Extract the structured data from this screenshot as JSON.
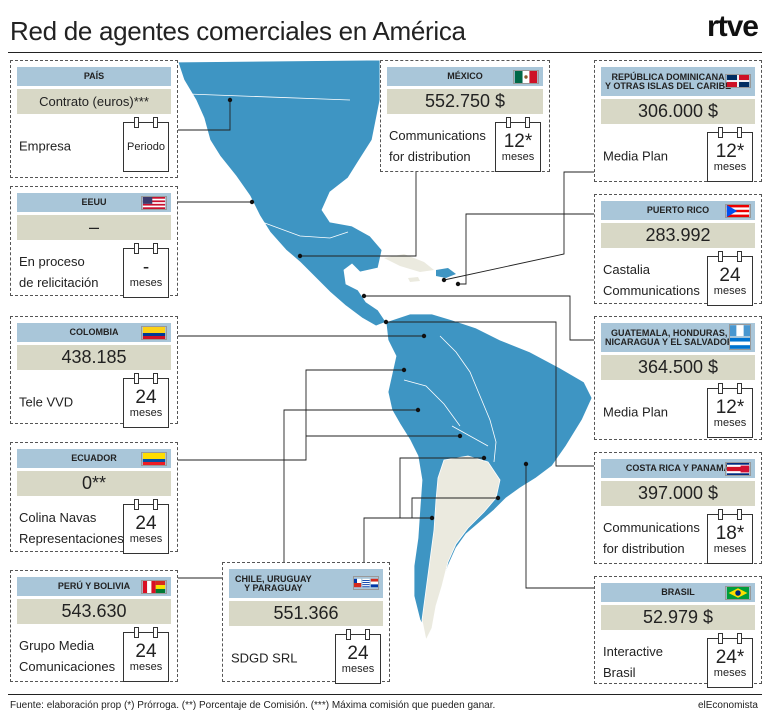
{
  "title": "Red de agentes comerciales en América",
  "logo": "rtve",
  "legend": {
    "header": "PAÍS",
    "amount": "Contrato (euros)***",
    "company": "Empresa",
    "period": "Periodo"
  },
  "cards": {
    "eeuu": {
      "country": "EEUU",
      "amount": "–",
      "company": "En proceso\nde relicitación",
      "num": "-",
      "unit": "meses",
      "flag": "usa-flag"
    },
    "colombia": {
      "country": "COLOMBIA",
      "amount": "438.185",
      "company": "Tele VVD",
      "num": "24",
      "unit": "meses",
      "flag": "colombia-flag"
    },
    "ecuador": {
      "country": "ECUADOR",
      "amount": "0**",
      "company": "Colina Navas\nRepresentaciones",
      "num": "24",
      "unit": "meses",
      "flag": "ecuador-flag"
    },
    "peru": {
      "country": "PERÚ Y BOLIVIA",
      "amount": "543.630",
      "company": "Grupo Media\nComunicaciones",
      "num": "24",
      "unit": "meses",
      "flag": "peru-bolivia-flag"
    },
    "chile": {
      "country": "CHILE, URUGUAY\nY PARAGUAY",
      "amount": "551.366",
      "company": "SDGD SRL",
      "num": "24",
      "unit": "meses",
      "flag": "chile-uruguay-paraguay-flag"
    },
    "mexico": {
      "country": "MÉXICO",
      "amount": "552.750 $",
      "company": "Communications\nfor distribution",
      "num": "12*",
      "unit": "meses",
      "flag": "mexico-flag"
    },
    "dominicana": {
      "country": "REPÚBLICA DOMINICANA\nY OTRAS ISLAS DEL CARIBE",
      "amount": "306.000 $",
      "company": "Media Plan",
      "num": "12*",
      "unit": "meses",
      "flag": "dominican-flag"
    },
    "puertorico": {
      "country": "PUERTO RICO",
      "amount": "283.992",
      "company": "Castalia\nCommunications",
      "num": "24",
      "unit": "meses",
      "flag": "puerto-rico-flag"
    },
    "guatemala": {
      "country": "GUATEMALA, HONDURAS,\nNICARAGUA Y EL SALVADOR",
      "amount": "364.500 $",
      "company": "Media Plan",
      "num": "12*",
      "unit": "meses",
      "flag": "central-america-flag"
    },
    "costarica": {
      "country": "COSTA RICA Y PANAMÁ",
      "amount": "397.000 $",
      "company": "Communications\nfor distribution",
      "num": "18*",
      "unit": "meses",
      "flag": "costa-rica-panama-flag"
    },
    "brasil": {
      "country": "BRASIL",
      "amount": "52.979 $",
      "company": "Interactive\nBrasil",
      "num": "24*",
      "unit": "meses",
      "flag": "brazil-flag"
    }
  },
  "footer": "Fuente: elaboración prop (*) Prórroga. (**) Porcentaje de Comisión. (***) Máxima comisión que pueden ganar.",
  "brand": "elEconomista",
  "colors": {
    "land": "#3e95c3",
    "other_land": "#ebeadf",
    "header": "#a9c6d9",
    "amount_bg": "#d8d8c6"
  }
}
